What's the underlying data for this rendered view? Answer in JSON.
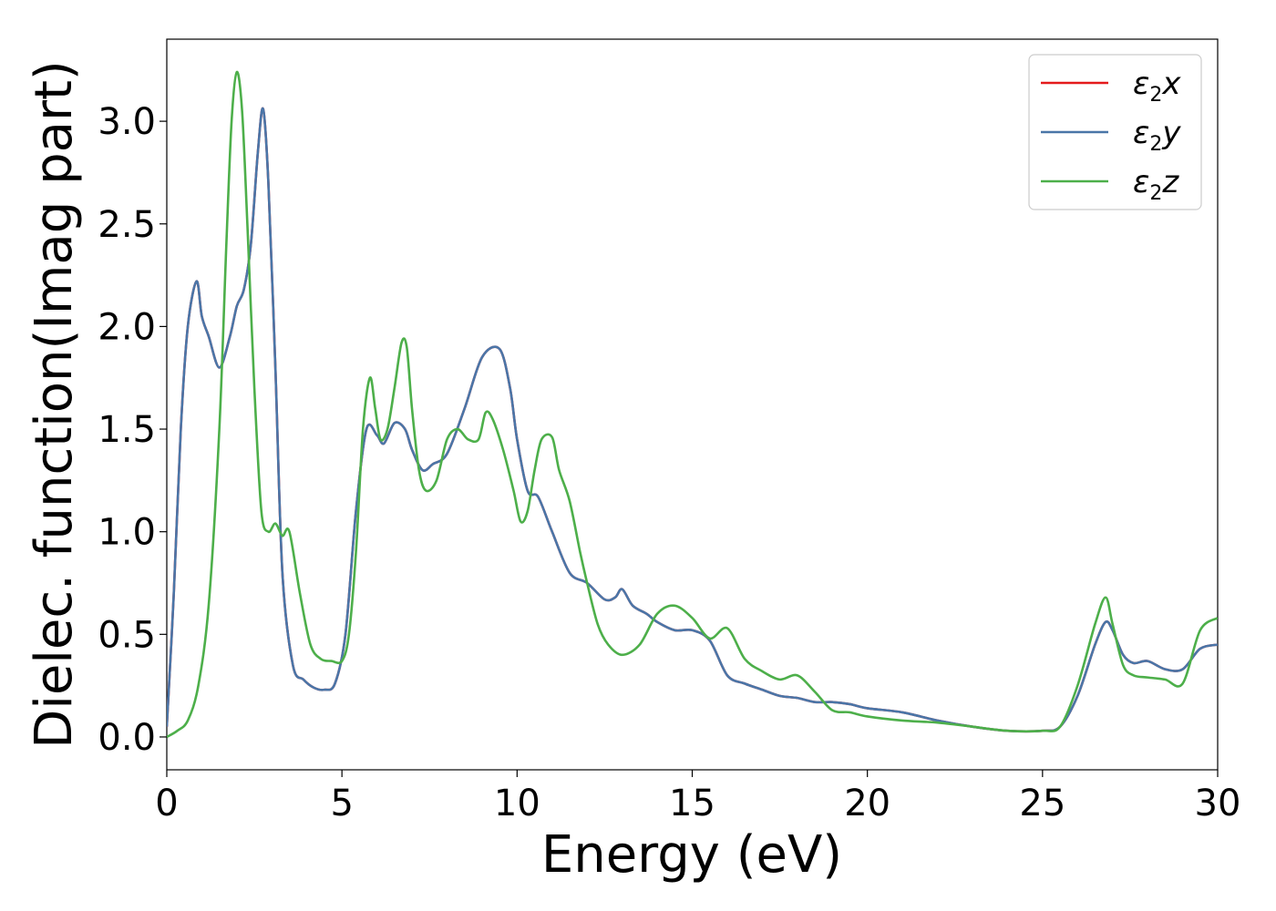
{
  "chart_data": {
    "type": "line",
    "xlabel": "Energy (eV)",
    "ylabel": "Dielec. function(Imag part)",
    "xlim": [
      0,
      30
    ],
    "ylim": [
      -0.16,
      3.4
    ],
    "x_ticks": [
      0,
      5,
      10,
      15,
      20,
      25,
      30
    ],
    "x_tick_labels": [
      "0",
      "5",
      "10",
      "15",
      "20",
      "25",
      "30"
    ],
    "y_ticks": [
      0.0,
      0.5,
      1.0,
      1.5,
      2.0,
      2.5,
      3.0
    ],
    "y_tick_labels": [
      "0.0",
      "0.5",
      "1.0",
      "1.5",
      "2.0",
      "2.5",
      "3.0"
    ],
    "grid": false,
    "legend_position": "top-right",
    "series": [
      {
        "name": "ε2x",
        "legend_main": "ε",
        "legend_sub": "2",
        "legend_var": "x",
        "color": "#e41a1c",
        "x": [
          0,
          0.2,
          0.4,
          0.6,
          0.85,
          1.0,
          1.2,
          1.5,
          1.8,
          2.0,
          2.2,
          2.4,
          2.6,
          2.75,
          2.9,
          3.1,
          3.3,
          3.6,
          3.9,
          4.2,
          4.5,
          4.8,
          5.1,
          5.4,
          5.7,
          6.0,
          6.2,
          6.5,
          6.8,
          7.0,
          7.3,
          7.6,
          8.0,
          8.5,
          9.0,
          9.5,
          9.8,
          10.0,
          10.3,
          10.6,
          11.0,
          11.5,
          12.0,
          12.5,
          12.8,
          13.0,
          13.3,
          13.7,
          14.0,
          14.5,
          15.0,
          15.5,
          16.0,
          16.5,
          17.0,
          17.5,
          18.0,
          18.5,
          19.0,
          19.5,
          20.0,
          21.0,
          22.0,
          23.0,
          24.0,
          25.0,
          25.5,
          26.0,
          26.5,
          26.8,
          27.0,
          27.3,
          27.6,
          28.0,
          28.5,
          29.0,
          29.5,
          30.0
        ],
        "y": [
          0.05,
          0.7,
          1.5,
          2.0,
          2.22,
          2.05,
          1.95,
          1.8,
          1.95,
          2.1,
          2.18,
          2.4,
          2.85,
          3.06,
          2.7,
          1.8,
          0.8,
          0.35,
          0.28,
          0.24,
          0.23,
          0.26,
          0.5,
          1.1,
          1.5,
          1.47,
          1.43,
          1.53,
          1.5,
          1.4,
          1.3,
          1.33,
          1.38,
          1.6,
          1.85,
          1.89,
          1.7,
          1.45,
          1.2,
          1.17,
          1.0,
          0.8,
          0.75,
          0.67,
          0.68,
          0.72,
          0.64,
          0.6,
          0.56,
          0.52,
          0.52,
          0.47,
          0.3,
          0.26,
          0.23,
          0.2,
          0.19,
          0.17,
          0.17,
          0.16,
          0.14,
          0.12,
          0.08,
          0.05,
          0.03,
          0.03,
          0.05,
          0.2,
          0.45,
          0.56,
          0.52,
          0.4,
          0.36,
          0.37,
          0.33,
          0.33,
          0.43,
          0.45
        ]
      },
      {
        "name": "ε2y",
        "legend_main": "ε",
        "legend_sub": "2",
        "legend_var": "y",
        "color": "#4a76a8",
        "x": [
          0,
          0.2,
          0.4,
          0.6,
          0.85,
          1.0,
          1.2,
          1.5,
          1.8,
          2.0,
          2.2,
          2.4,
          2.6,
          2.75,
          2.9,
          3.1,
          3.3,
          3.6,
          3.9,
          4.2,
          4.5,
          4.8,
          5.1,
          5.4,
          5.7,
          6.0,
          6.2,
          6.5,
          6.8,
          7.0,
          7.3,
          7.6,
          8.0,
          8.5,
          9.0,
          9.5,
          9.8,
          10.0,
          10.3,
          10.6,
          11.0,
          11.5,
          12.0,
          12.5,
          12.8,
          13.0,
          13.3,
          13.7,
          14.0,
          14.5,
          15.0,
          15.5,
          16.0,
          16.5,
          17.0,
          17.5,
          18.0,
          18.5,
          19.0,
          19.5,
          20.0,
          21.0,
          22.0,
          23.0,
          24.0,
          25.0,
          25.5,
          26.0,
          26.5,
          26.8,
          27.0,
          27.3,
          27.6,
          28.0,
          28.5,
          29.0,
          29.5,
          30.0
        ],
        "y": [
          0.05,
          0.7,
          1.5,
          2.0,
          2.22,
          2.05,
          1.95,
          1.8,
          1.95,
          2.1,
          2.18,
          2.4,
          2.85,
          3.06,
          2.7,
          1.8,
          0.8,
          0.35,
          0.28,
          0.24,
          0.23,
          0.26,
          0.5,
          1.1,
          1.5,
          1.47,
          1.43,
          1.53,
          1.5,
          1.4,
          1.3,
          1.33,
          1.38,
          1.6,
          1.85,
          1.89,
          1.7,
          1.45,
          1.2,
          1.17,
          1.0,
          0.8,
          0.75,
          0.67,
          0.68,
          0.72,
          0.64,
          0.6,
          0.56,
          0.52,
          0.52,
          0.47,
          0.3,
          0.26,
          0.23,
          0.2,
          0.19,
          0.17,
          0.17,
          0.16,
          0.14,
          0.12,
          0.08,
          0.05,
          0.03,
          0.03,
          0.05,
          0.2,
          0.45,
          0.56,
          0.52,
          0.4,
          0.36,
          0.37,
          0.33,
          0.33,
          0.43,
          0.45
        ]
      },
      {
        "name": "ε2z",
        "legend_main": "ε",
        "legend_sub": "2",
        "legend_var": "z",
        "color": "#4daf4a",
        "x": [
          0,
          0.3,
          0.6,
          0.9,
          1.2,
          1.5,
          1.7,
          1.85,
          2.0,
          2.15,
          2.3,
          2.5,
          2.7,
          2.9,
          3.1,
          3.3,
          3.5,
          3.8,
          4.1,
          4.4,
          4.7,
          5.0,
          5.2,
          5.4,
          5.6,
          5.8,
          5.95,
          6.1,
          6.3,
          6.5,
          6.7,
          6.85,
          7.0,
          7.2,
          7.4,
          7.7,
          8.0,
          8.3,
          8.6,
          8.9,
          9.1,
          9.3,
          9.6,
          9.9,
          10.1,
          10.3,
          10.5,
          10.7,
          11.0,
          11.2,
          11.5,
          11.8,
          12.0,
          12.3,
          12.6,
          13.0,
          13.5,
          14.0,
          14.5,
          15.0,
          15.5,
          16.0,
          16.5,
          17.0,
          17.5,
          18.0,
          18.5,
          19.0,
          19.5,
          20.0,
          21.0,
          22.0,
          23.0,
          24.0,
          25.0,
          25.5,
          26.0,
          26.5,
          26.8,
          27.0,
          27.3,
          27.6,
          28.0,
          28.5,
          29.0,
          29.5,
          30.0
        ],
        "y": [
          0.0,
          0.03,
          0.08,
          0.25,
          0.65,
          1.5,
          2.4,
          3.0,
          3.24,
          3.05,
          2.5,
          1.7,
          1.1,
          1.0,
          1.04,
          0.98,
          1.0,
          0.7,
          0.45,
          0.38,
          0.37,
          0.37,
          0.5,
          0.9,
          1.5,
          1.75,
          1.6,
          1.45,
          1.5,
          1.7,
          1.92,
          1.9,
          1.6,
          1.3,
          1.2,
          1.25,
          1.45,
          1.5,
          1.45,
          1.45,
          1.58,
          1.55,
          1.4,
          1.2,
          1.05,
          1.1,
          1.3,
          1.45,
          1.46,
          1.3,
          1.15,
          0.9,
          0.75,
          0.55,
          0.45,
          0.4,
          0.45,
          0.6,
          0.64,
          0.58,
          0.48,
          0.53,
          0.38,
          0.32,
          0.28,
          0.3,
          0.22,
          0.13,
          0.12,
          0.1,
          0.08,
          0.07,
          0.05,
          0.03,
          0.03,
          0.05,
          0.25,
          0.55,
          0.68,
          0.55,
          0.35,
          0.3,
          0.29,
          0.28,
          0.26,
          0.52,
          0.58
        ]
      }
    ]
  }
}
